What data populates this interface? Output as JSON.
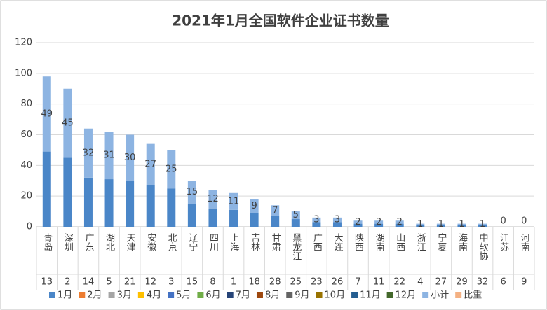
{
  "chart_data": {
    "type": "bar",
    "stacked": true,
    "title": "2021年1月全国软件企业证书数量",
    "categories": [
      "青岛",
      "深圳",
      "广东",
      "湖北",
      "天津",
      "安徽",
      "北京",
      "辽宁",
      "四川",
      "上海",
      "吉林",
      "甘肃",
      "黑龙江",
      "广西",
      "大连",
      "陕西",
      "湖南",
      "山西",
      "浙江",
      "宁夏",
      "海南",
      "中软协",
      "江苏",
      "河南"
    ],
    "category_codes": [
      "13",
      "2",
      "14",
      "5",
      "21",
      "12",
      "3",
      "15",
      "8",
      "1",
      "18",
      "28",
      "25",
      "23",
      "26",
      "7",
      "11",
      "22",
      "4",
      "27",
      "29",
      "32",
      "6",
      "9"
    ],
    "series": [
      {
        "name": "1月",
        "color": "#4a86c8",
        "values": [
          49,
          45,
          32,
          31,
          30,
          27,
          25,
          15,
          12,
          11,
          9,
          7,
          5,
          3,
          3,
          2,
          2,
          2,
          1,
          1,
          1,
          1,
          0,
          0
        ]
      },
      {
        "name": "2月",
        "color": "#ed7d31",
        "values": [
          null,
          null,
          null,
          null,
          null,
          null,
          null,
          null,
          null,
          null,
          null,
          null,
          null,
          null,
          null,
          null,
          null,
          null,
          null,
          null,
          null,
          null,
          null,
          null
        ]
      },
      {
        "name": "3月",
        "color": "#a5a5a5",
        "values": [
          null,
          null,
          null,
          null,
          null,
          null,
          null,
          null,
          null,
          null,
          null,
          null,
          null,
          null,
          null,
          null,
          null,
          null,
          null,
          null,
          null,
          null,
          null,
          null
        ]
      },
      {
        "name": "4月",
        "color": "#ffc000",
        "values": [
          null,
          null,
          null,
          null,
          null,
          null,
          null,
          null,
          null,
          null,
          null,
          null,
          null,
          null,
          null,
          null,
          null,
          null,
          null,
          null,
          null,
          null,
          null,
          null
        ]
      },
      {
        "name": "5月",
        "color": "#4472c4",
        "values": [
          null,
          null,
          null,
          null,
          null,
          null,
          null,
          null,
          null,
          null,
          null,
          null,
          null,
          null,
          null,
          null,
          null,
          null,
          null,
          null,
          null,
          null,
          null,
          null
        ]
      },
      {
        "name": "6月",
        "color": "#70ad47",
        "values": [
          null,
          null,
          null,
          null,
          null,
          null,
          null,
          null,
          null,
          null,
          null,
          null,
          null,
          null,
          null,
          null,
          null,
          null,
          null,
          null,
          null,
          null,
          null,
          null
        ]
      },
      {
        "name": "7月",
        "color": "#264478",
        "values": [
          null,
          null,
          null,
          null,
          null,
          null,
          null,
          null,
          null,
          null,
          null,
          null,
          null,
          null,
          null,
          null,
          null,
          null,
          null,
          null,
          null,
          null,
          null,
          null
        ]
      },
      {
        "name": "8月",
        "color": "#9e480e",
        "values": [
          null,
          null,
          null,
          null,
          null,
          null,
          null,
          null,
          null,
          null,
          null,
          null,
          null,
          null,
          null,
          null,
          null,
          null,
          null,
          null,
          null,
          null,
          null,
          null
        ]
      },
      {
        "name": "9月",
        "color": "#636363",
        "values": [
          null,
          null,
          null,
          null,
          null,
          null,
          null,
          null,
          null,
          null,
          null,
          null,
          null,
          null,
          null,
          null,
          null,
          null,
          null,
          null,
          null,
          null,
          null,
          null
        ]
      },
      {
        "name": "10月",
        "color": "#997300",
        "values": [
          null,
          null,
          null,
          null,
          null,
          null,
          null,
          null,
          null,
          null,
          null,
          null,
          null,
          null,
          null,
          null,
          null,
          null,
          null,
          null,
          null,
          null,
          null,
          null
        ]
      },
      {
        "name": "11月",
        "color": "#255e91",
        "values": [
          null,
          null,
          null,
          null,
          null,
          null,
          null,
          null,
          null,
          null,
          null,
          null,
          null,
          null,
          null,
          null,
          null,
          null,
          null,
          null,
          null,
          null,
          null,
          null
        ]
      },
      {
        "name": "12月",
        "color": "#43682b",
        "values": [
          null,
          null,
          null,
          null,
          null,
          null,
          null,
          null,
          null,
          null,
          null,
          null,
          null,
          null,
          null,
          null,
          null,
          null,
          null,
          null,
          null,
          null,
          null,
          null
        ]
      },
      {
        "name": "小计",
        "color": "#8db4e2",
        "values": [
          49,
          45,
          32,
          31,
          30,
          27,
          25,
          15,
          12,
          11,
          9,
          7,
          5,
          3,
          3,
          2,
          2,
          2,
          1,
          1,
          1,
          1,
          0,
          0
        ]
      },
      {
        "name": "比重",
        "color": "#f4b183",
        "values": [
          null,
          null,
          null,
          null,
          null,
          null,
          null,
          null,
          null,
          null,
          null,
          null,
          null,
          null,
          null,
          null,
          null,
          null,
          null,
          null,
          null,
          null,
          null,
          null
        ]
      }
    ],
    "label_series": 12,
    "ylim": [
      0,
      120
    ],
    "yticks": [
      0,
      20,
      40,
      60,
      80,
      100,
      120
    ],
    "grid": true
  }
}
